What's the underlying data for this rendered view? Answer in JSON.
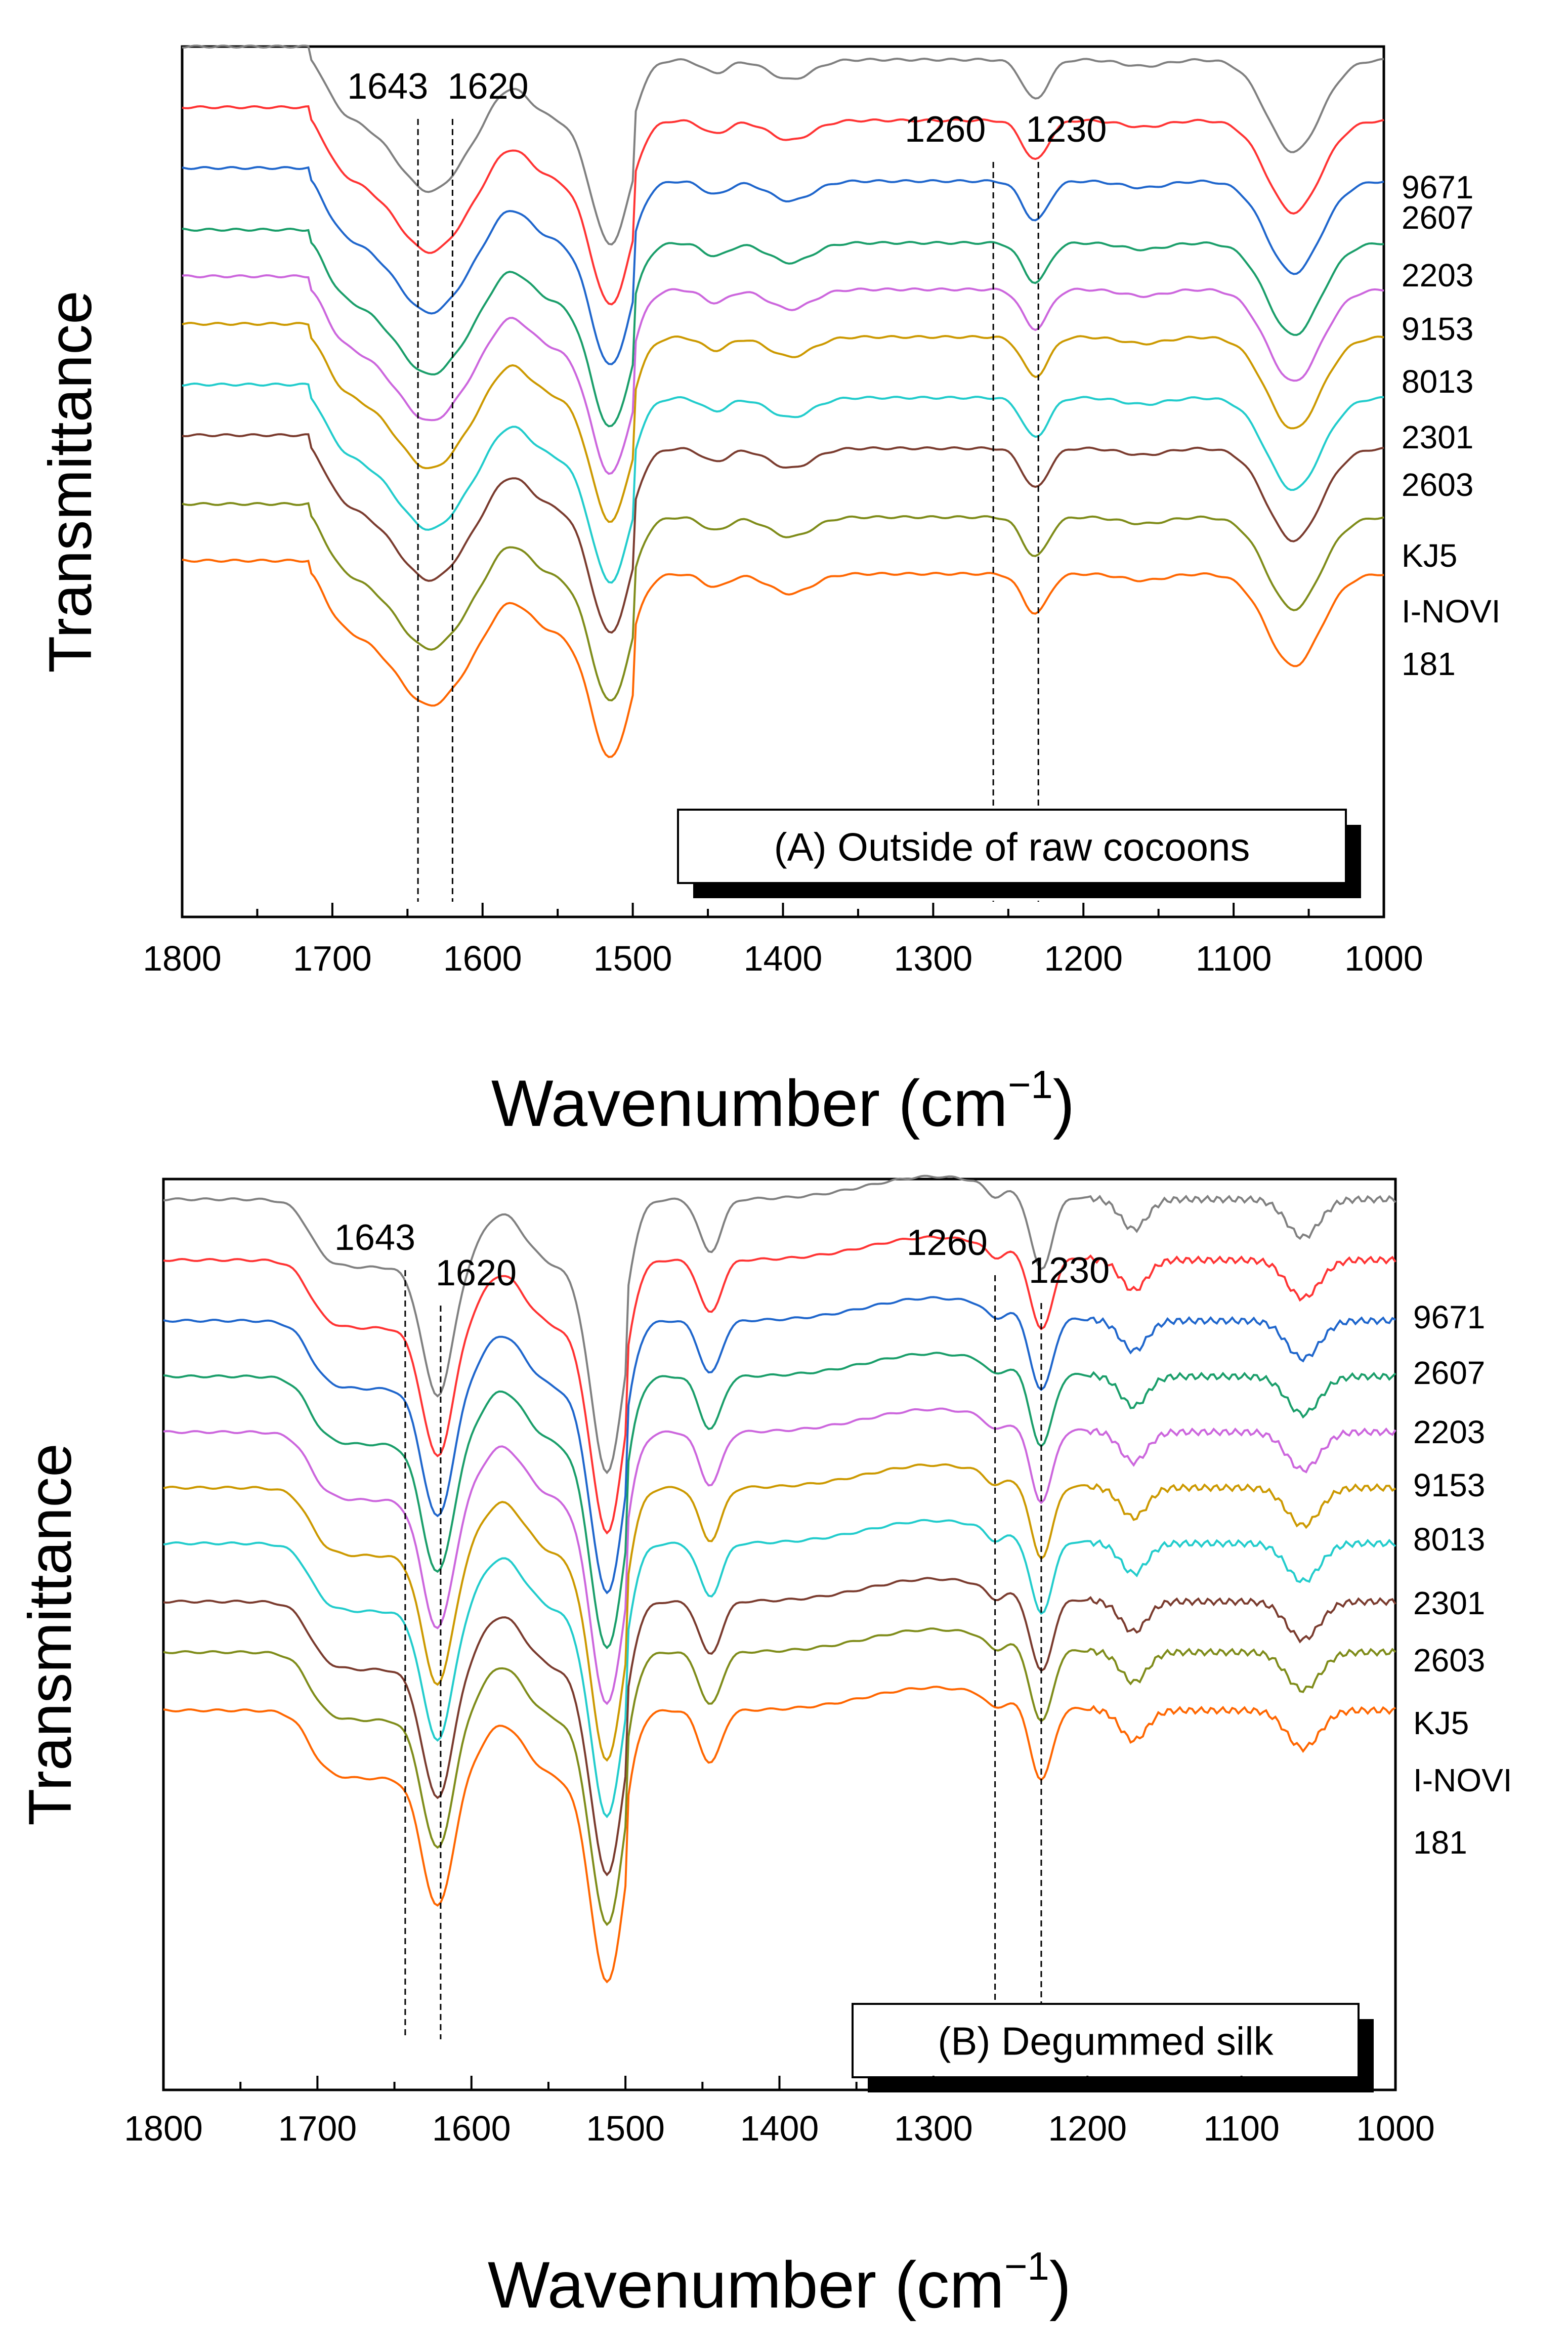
{
  "chart_data": [
    {
      "type": "line",
      "title": "(A) Outside of raw cocoons",
      "xlabel": "Wavenumber (cm",
      "xlabel_sup": "−1",
      "xlabel_close": ")",
      "ylabel": "Transmittance",
      "xlim": [
        1800,
        1000
      ],
      "xticks": [
        1800,
        1700,
        1600,
        1500,
        1400,
        1300,
        1200,
        1100,
        1000
      ],
      "reference_lines": [
        1643,
        1620,
        1260,
        1230
      ],
      "series": [
        {
          "name": "9671",
          "color": "#808080"
        },
        {
          "name": "2607",
          "color": "#ff3333"
        },
        {
          "name": "2203",
          "color": "#1f66cc"
        },
        {
          "name": "9153",
          "color": "#1a9e6a"
        },
        {
          "name": "8013",
          "color": "#cc66dd"
        },
        {
          "name": "2301",
          "color": "#cc9900"
        },
        {
          "name": "2603",
          "color": "#22cccc"
        },
        {
          "name": "KJ5",
          "color": "#7a3b2e"
        },
        {
          "name": "I-NOVI",
          "color": "#7f8c1a"
        },
        {
          "name": "181",
          "color": "#ff6600"
        }
      ]
    },
    {
      "type": "line",
      "title": "(B) Degummed silk",
      "xlabel": "Wavenumber (cm",
      "xlabel_sup": "−1",
      "xlabel_close": ")",
      "ylabel": "Transmittance",
      "xlim": [
        1800,
        1000
      ],
      "xticks": [
        1800,
        1700,
        1600,
        1500,
        1400,
        1300,
        1200,
        1100,
        1000
      ],
      "reference_lines": [
        1643,
        1620,
        1260,
        1230
      ],
      "series": [
        {
          "name": "9671",
          "color": "#808080"
        },
        {
          "name": "2607",
          "color": "#ff3333"
        },
        {
          "name": "2203",
          "color": "#1f66cc"
        },
        {
          "name": "9153",
          "color": "#1a9e6a"
        },
        {
          "name": "8013",
          "color": "#cc66dd"
        },
        {
          "name": "2301",
          "color": "#cc9900"
        },
        {
          "name": "2603",
          "color": "#22cccc"
        },
        {
          "name": "KJ5",
          "color": "#7a3b2e"
        },
        {
          "name": "I-NOVI",
          "color": "#7f8c1a"
        },
        {
          "name": "181",
          "color": "#ff6600"
        }
      ]
    }
  ]
}
